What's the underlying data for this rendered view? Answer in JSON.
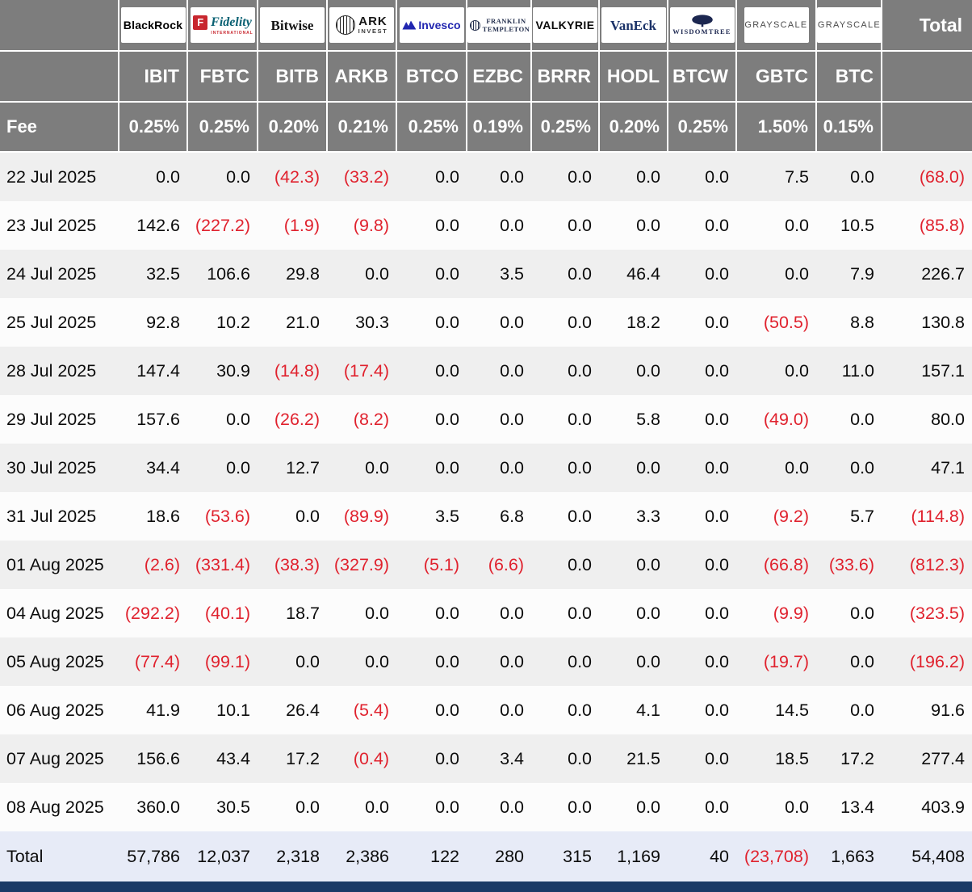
{
  "header": {
    "total_label": "Total",
    "fee_label": "Fee",
    "columns": [
      {
        "ticker": "IBIT",
        "issuer": "BlackRock",
        "fee": "0.25%",
        "logo": {
          "style": "blackrock",
          "text": "BlackRock"
        }
      },
      {
        "ticker": "FBTC",
        "issuer": "Fidelity International",
        "fee": "0.25%",
        "logo": {
          "style": "fidelity",
          "icon": "F",
          "text": "Fidelity",
          "sub": "INTERNATIONAL"
        }
      },
      {
        "ticker": "BITB",
        "issuer": "Bitwise",
        "fee": "0.20%",
        "logo": {
          "style": "bitwise",
          "text": "Bitwise"
        }
      },
      {
        "ticker": "ARKB",
        "issuer": "ARK Invest",
        "fee": "0.21%",
        "logo": {
          "style": "ark",
          "text": "ARK",
          "sub": "INVEST"
        }
      },
      {
        "ticker": "BTCO",
        "issuer": "Invesco",
        "fee": "0.25%",
        "logo": {
          "style": "invesco",
          "text": "Invesco"
        }
      },
      {
        "ticker": "EZBC",
        "issuer": "Franklin Templeton",
        "fee": "0.19%",
        "logo": {
          "style": "franklin",
          "line1": "FRANKLIN",
          "line2": "TEMPLETON"
        }
      },
      {
        "ticker": "BRRR",
        "issuer": "Valkyrie",
        "fee": "0.25%",
        "logo": {
          "style": "valkyrie",
          "text": "VALKYRIE"
        }
      },
      {
        "ticker": "HODL",
        "issuer": "VanEck",
        "fee": "0.20%",
        "logo": {
          "style": "vaneck",
          "text": "VanEck"
        }
      },
      {
        "ticker": "BTCW",
        "issuer": "WisdomTree",
        "fee": "0.25%",
        "logo": {
          "style": "wisdomtree",
          "text": "WISDOMTREE"
        }
      },
      {
        "ticker": "GBTC",
        "issuer": "Grayscale",
        "fee": "1.50%",
        "logo": {
          "style": "grayscale",
          "text": "GRAYSCALE"
        }
      },
      {
        "ticker": "BTC",
        "issuer": "Grayscale",
        "fee": "0.15%",
        "logo": {
          "style": "grayscale",
          "text": "GRAYSCALE"
        }
      }
    ]
  },
  "rows": [
    {
      "date": "22 Jul 2025",
      "values": [
        "0.0",
        "0.0",
        "(42.3)",
        "(33.2)",
        "0.0",
        "0.0",
        "0.0",
        "0.0",
        "0.0",
        "7.5",
        "0.0"
      ],
      "total": "(68.0)"
    },
    {
      "date": "23 Jul 2025",
      "values": [
        "142.6",
        "(227.2)",
        "(1.9)",
        "(9.8)",
        "0.0",
        "0.0",
        "0.0",
        "0.0",
        "0.0",
        "0.0",
        "10.5"
      ],
      "total": "(85.8)"
    },
    {
      "date": "24 Jul 2025",
      "values": [
        "32.5",
        "106.6",
        "29.8",
        "0.0",
        "0.0",
        "3.5",
        "0.0",
        "46.4",
        "0.0",
        "0.0",
        "7.9"
      ],
      "total": "226.7"
    },
    {
      "date": "25 Jul 2025",
      "values": [
        "92.8",
        "10.2",
        "21.0",
        "30.3",
        "0.0",
        "0.0",
        "0.0",
        "18.2",
        "0.0",
        "(50.5)",
        "8.8"
      ],
      "total": "130.8"
    },
    {
      "date": "28 Jul 2025",
      "values": [
        "147.4",
        "30.9",
        "(14.8)",
        "(17.4)",
        "0.0",
        "0.0",
        "0.0",
        "0.0",
        "0.0",
        "0.0",
        "11.0"
      ],
      "total": "157.1"
    },
    {
      "date": "29 Jul 2025",
      "values": [
        "157.6",
        "0.0",
        "(26.2)",
        "(8.2)",
        "0.0",
        "0.0",
        "0.0",
        "5.8",
        "0.0",
        "(49.0)",
        "0.0"
      ],
      "total": "80.0"
    },
    {
      "date": "30 Jul 2025",
      "values": [
        "34.4",
        "0.0",
        "12.7",
        "0.0",
        "0.0",
        "0.0",
        "0.0",
        "0.0",
        "0.0",
        "0.0",
        "0.0"
      ],
      "total": "47.1"
    },
    {
      "date": "31 Jul 2025",
      "values": [
        "18.6",
        "(53.6)",
        "0.0",
        "(89.9)",
        "3.5",
        "6.8",
        "0.0",
        "3.3",
        "0.0",
        "(9.2)",
        "5.7"
      ],
      "total": "(114.8)"
    },
    {
      "date": "01 Aug 2025",
      "values": [
        "(2.6)",
        "(331.4)",
        "(38.3)",
        "(327.9)",
        "(5.1)",
        "(6.6)",
        "0.0",
        "0.0",
        "0.0",
        "(66.8)",
        "(33.6)"
      ],
      "total": "(812.3)"
    },
    {
      "date": "04 Aug 2025",
      "values": [
        "(292.2)",
        "(40.1)",
        "18.7",
        "0.0",
        "0.0",
        "0.0",
        "0.0",
        "0.0",
        "0.0",
        "(9.9)",
        "0.0"
      ],
      "total": "(323.5)"
    },
    {
      "date": "05 Aug 2025",
      "values": [
        "(77.4)",
        "(99.1)",
        "0.0",
        "0.0",
        "0.0",
        "0.0",
        "0.0",
        "0.0",
        "0.0",
        "(19.7)",
        "0.0"
      ],
      "total": "(196.2)"
    },
    {
      "date": "06 Aug 2025",
      "values": [
        "41.9",
        "10.1",
        "26.4",
        "(5.4)",
        "0.0",
        "0.0",
        "0.0",
        "4.1",
        "0.0",
        "14.5",
        "0.0"
      ],
      "total": "91.6"
    },
    {
      "date": "07 Aug 2025",
      "values": [
        "156.6",
        "43.4",
        "17.2",
        "(0.4)",
        "0.0",
        "3.4",
        "0.0",
        "21.5",
        "0.0",
        "18.5",
        "17.2"
      ],
      "total": "277.4"
    },
    {
      "date": "08 Aug 2025",
      "values": [
        "360.0",
        "30.5",
        "0.0",
        "0.0",
        "0.0",
        "0.0",
        "0.0",
        "0.0",
        "0.0",
        "0.0",
        "13.4"
      ],
      "total": "403.9"
    }
  ],
  "total_row": {
    "label": "Total",
    "values": [
      "57,786",
      "12,037",
      "2,318",
      "2,386",
      "122",
      "280",
      "315",
      "1,169",
      "40",
      "(23,708)",
      "1,663"
    ],
    "total": "54,408"
  },
  "colors": {
    "header_bg": "#7d7d7d",
    "negative_red": "#e0222e",
    "total_row_bg": "#e7ebf7",
    "row_stripe": "#efefef",
    "bottom_bar": "#1a3a66"
  },
  "chart_data": {
    "type": "table",
    "columns": [
      "IBIT",
      "FBTC",
      "BITB",
      "ARKB",
      "BTCO",
      "EZBC",
      "BRRR",
      "HODL",
      "BTCW",
      "GBTC",
      "BTC",
      "Total"
    ],
    "issuers": [
      "BlackRock",
      "Fidelity International",
      "Bitwise",
      "ARK Invest",
      "Invesco",
      "Franklin Templeton",
      "Valkyrie",
      "VanEck",
      "WisdomTree",
      "Grayscale",
      "Grayscale",
      ""
    ],
    "fees": [
      "0.25%",
      "0.25%",
      "0.20%",
      "0.21%",
      "0.25%",
      "0.19%",
      "0.25%",
      "0.20%",
      "0.25%",
      "1.50%",
      "0.15%",
      ""
    ],
    "rows": [
      {
        "date": "22 Jul 2025",
        "values": [
          0.0,
          0.0,
          -42.3,
          -33.2,
          0.0,
          0.0,
          0.0,
          0.0,
          0.0,
          7.5,
          0.0,
          -68.0
        ]
      },
      {
        "date": "23 Jul 2025",
        "values": [
          142.6,
          -227.2,
          -1.9,
          -9.8,
          0.0,
          0.0,
          0.0,
          0.0,
          0.0,
          0.0,
          10.5,
          -85.8
        ]
      },
      {
        "date": "24 Jul 2025",
        "values": [
          32.5,
          106.6,
          29.8,
          0.0,
          0.0,
          3.5,
          0.0,
          46.4,
          0.0,
          0.0,
          7.9,
          226.7
        ]
      },
      {
        "date": "25 Jul 2025",
        "values": [
          92.8,
          10.2,
          21.0,
          30.3,
          0.0,
          0.0,
          0.0,
          18.2,
          0.0,
          -50.5,
          8.8,
          130.8
        ]
      },
      {
        "date": "28 Jul 2025",
        "values": [
          147.4,
          30.9,
          -14.8,
          -17.4,
          0.0,
          0.0,
          0.0,
          0.0,
          0.0,
          0.0,
          11.0,
          157.1
        ]
      },
      {
        "date": "29 Jul 2025",
        "values": [
          157.6,
          0.0,
          -26.2,
          -8.2,
          0.0,
          0.0,
          0.0,
          5.8,
          0.0,
          -49.0,
          0.0,
          80.0
        ]
      },
      {
        "date": "30 Jul 2025",
        "values": [
          34.4,
          0.0,
          12.7,
          0.0,
          0.0,
          0.0,
          0.0,
          0.0,
          0.0,
          0.0,
          0.0,
          47.1
        ]
      },
      {
        "date": "31 Jul 2025",
        "values": [
          18.6,
          -53.6,
          0.0,
          -89.9,
          3.5,
          6.8,
          0.0,
          3.3,
          0.0,
          -9.2,
          5.7,
          -114.8
        ]
      },
      {
        "date": "01 Aug 2025",
        "values": [
          -2.6,
          -331.4,
          -38.3,
          -327.9,
          -5.1,
          -6.6,
          0.0,
          0.0,
          0.0,
          -66.8,
          -33.6,
          -812.3
        ]
      },
      {
        "date": "04 Aug 2025",
        "values": [
          -292.2,
          -40.1,
          18.7,
          0.0,
          0.0,
          0.0,
          0.0,
          0.0,
          0.0,
          -9.9,
          0.0,
          -323.5
        ]
      },
      {
        "date": "05 Aug 2025",
        "values": [
          -77.4,
          -99.1,
          0.0,
          0.0,
          0.0,
          0.0,
          0.0,
          0.0,
          0.0,
          -19.7,
          0.0,
          -196.2
        ]
      },
      {
        "date": "06 Aug 2025",
        "values": [
          41.9,
          10.1,
          26.4,
          -5.4,
          0.0,
          0.0,
          0.0,
          4.1,
          0.0,
          14.5,
          0.0,
          91.6
        ]
      },
      {
        "date": "07 Aug 2025",
        "values": [
          156.6,
          43.4,
          17.2,
          -0.4,
          0.0,
          3.4,
          0.0,
          21.5,
          0.0,
          18.5,
          17.2,
          277.4
        ]
      },
      {
        "date": "08 Aug 2025",
        "values": [
          360.0,
          30.5,
          0.0,
          0.0,
          0.0,
          0.0,
          0.0,
          0.0,
          0.0,
          0.0,
          13.4,
          403.9
        ]
      }
    ],
    "total_row": [
      57786,
      12037,
      2318,
      2386,
      122,
      280,
      315,
      1169,
      40,
      -23708,
      1663,
      54408
    ]
  }
}
